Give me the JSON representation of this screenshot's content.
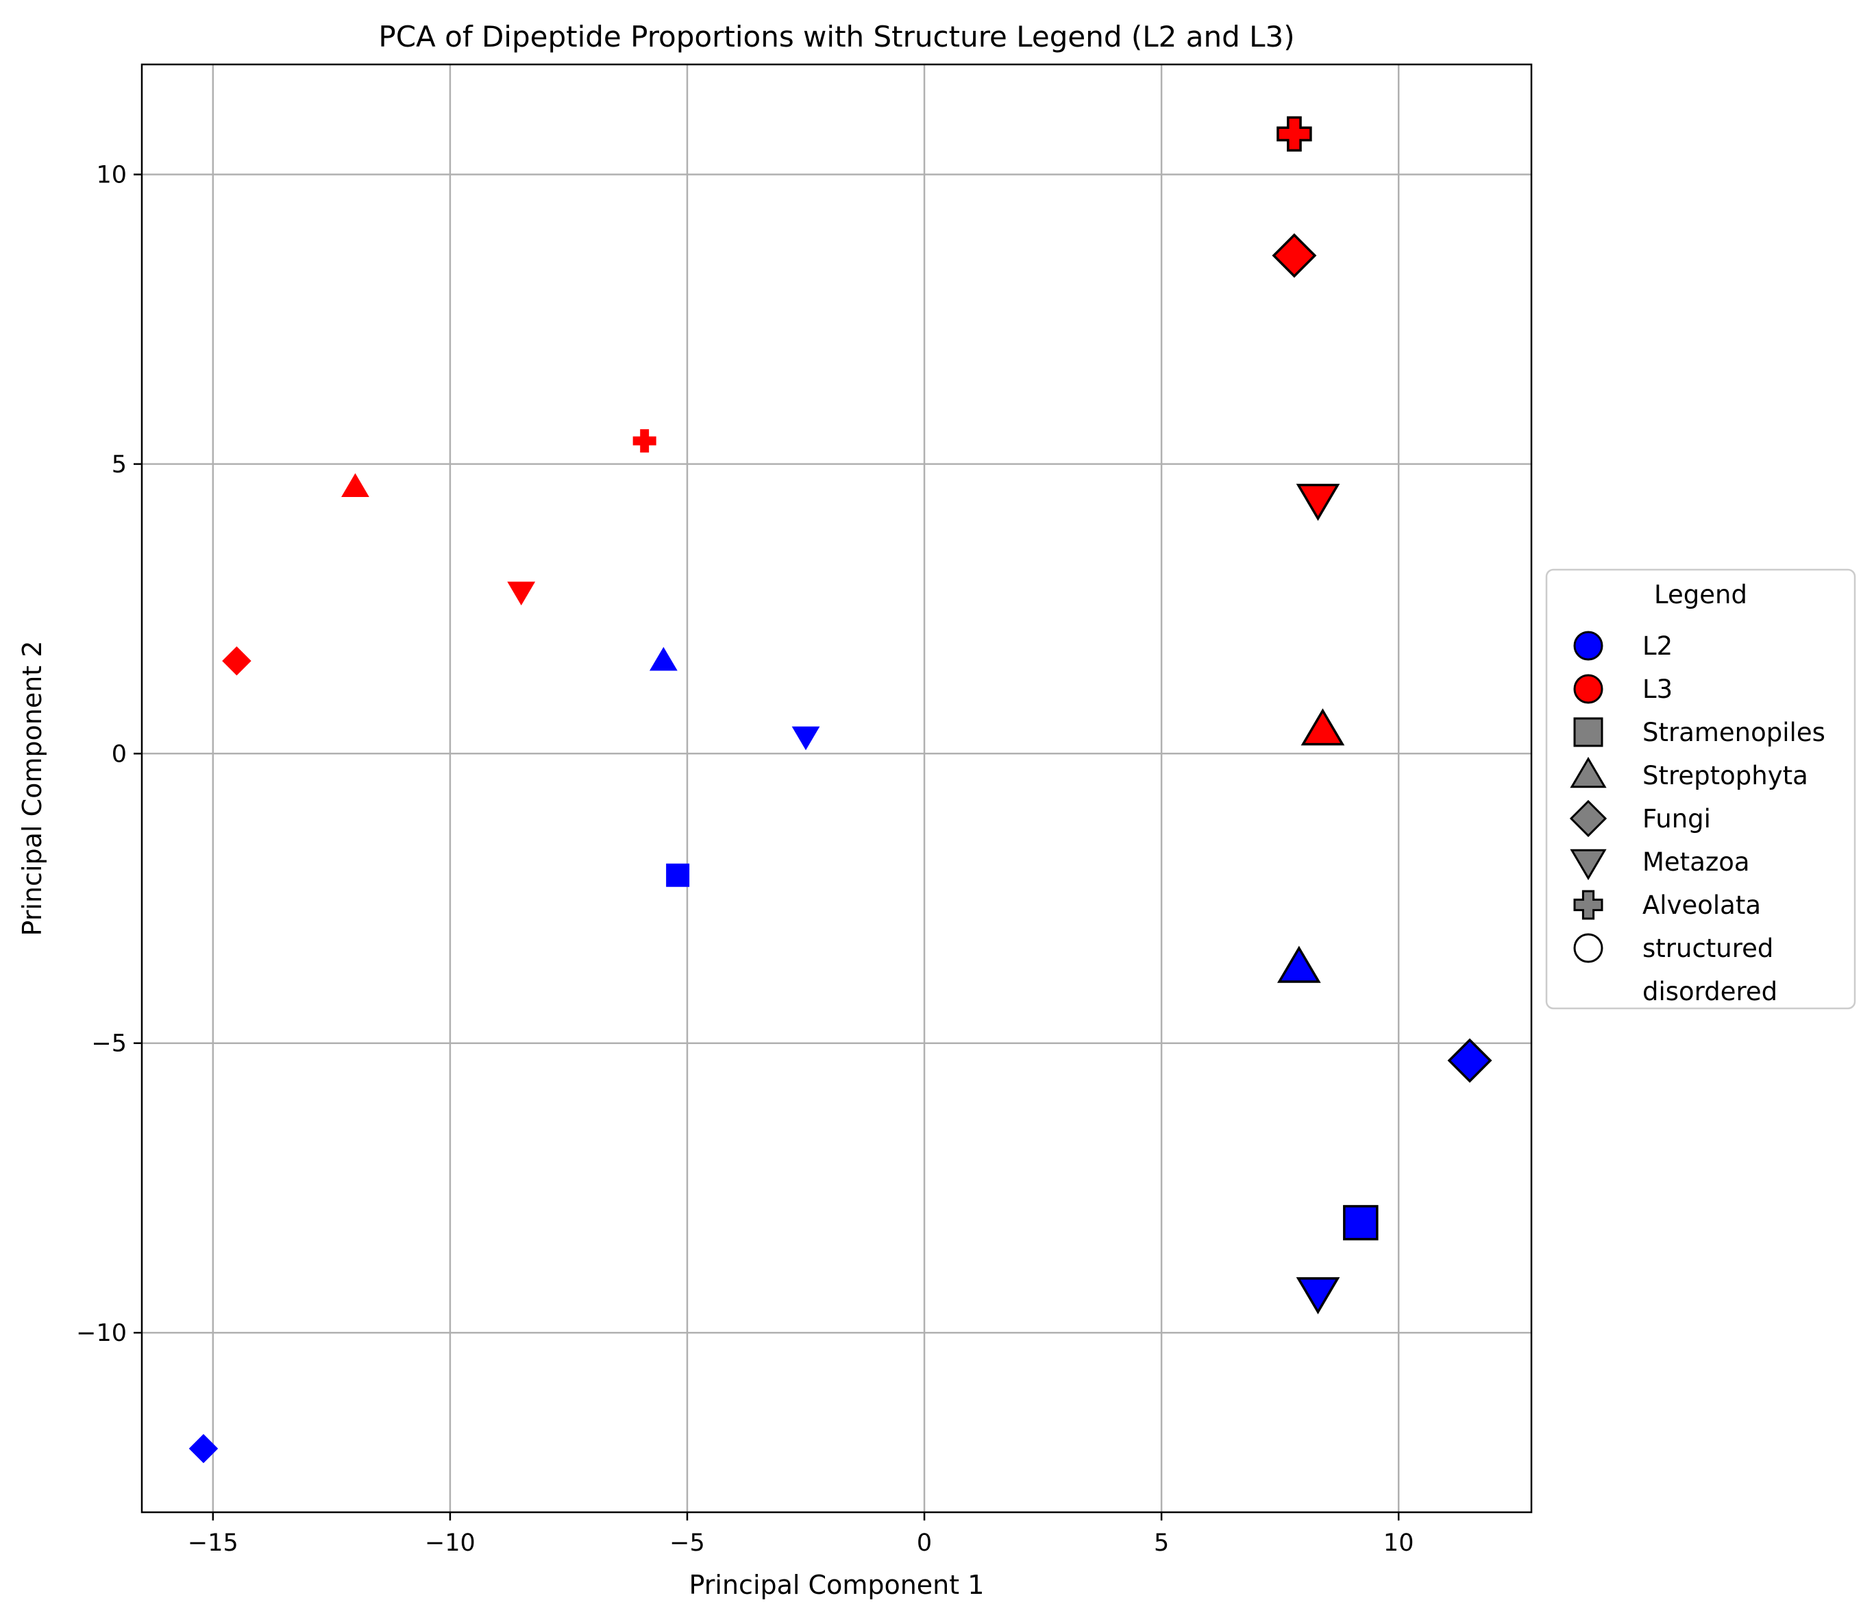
{
  "chart_data": {
    "type": "scatter",
    "title": "PCA of Dipeptide Proportions with Structure Legend (L2 and L3)",
    "xlabel": "Principal Component 1",
    "ylabel": "Principal Component 2",
    "xlim": [
      -16.5,
      12.8
    ],
    "ylim": [
      -13.1,
      11.9
    ],
    "xticks": [
      -15,
      -10,
      -5,
      0,
      5,
      10
    ],
    "yticks": [
      -10,
      -5,
      0,
      5,
      10
    ],
    "xtick_labels": [
      "−15",
      "−10",
      "−5",
      "0",
      "5",
      "10"
    ],
    "ytick_labels": [
      "−10",
      "−5",
      "0",
      "5",
      "10"
    ],
    "grid": true,
    "legend": {
      "title": "Legend",
      "placement": "center-right-outside",
      "entries": [
        {
          "label": "L2",
          "marker": "circle",
          "fill": "#0000ff",
          "edge": "#000000"
        },
        {
          "label": "L3",
          "marker": "circle",
          "fill": "#ff0000",
          "edge": "#000000"
        },
        {
          "label": "Stramenopiles",
          "marker": "square",
          "fill": "#808080",
          "edge": "#000000"
        },
        {
          "label": "Streptophyta",
          "marker": "triangle-up",
          "fill": "#808080",
          "edge": "#000000"
        },
        {
          "label": "Fungi",
          "marker": "diamond",
          "fill": "#808080",
          "edge": "#000000"
        },
        {
          "label": "Metazoa",
          "marker": "triangle-down",
          "fill": "#808080",
          "edge": "#000000"
        },
        {
          "label": "Alveolata",
          "marker": "plus",
          "fill": "#808080",
          "edge": "#000000"
        },
        {
          "label": "structured",
          "marker": "circle",
          "fill": "#ffffff",
          "edge": "#000000"
        },
        {
          "label": "disordered",
          "marker": "none",
          "fill": "#ffffff",
          "edge": "#ffffff"
        }
      ]
    },
    "colors": {
      "L2": "#0000ff",
      "L3": "#ff0000"
    },
    "points": [
      {
        "x": -15.2,
        "y": -12.0,
        "group": "L2",
        "taxon": "Fungi",
        "structure": "disordered"
      },
      {
        "x": -5.2,
        "y": -2.1,
        "group": "L2",
        "taxon": "Stramenopiles",
        "structure": "disordered"
      },
      {
        "x": -5.5,
        "y": 1.6,
        "group": "L2",
        "taxon": "Streptophyta",
        "structure": "disordered"
      },
      {
        "x": -2.5,
        "y": 0.3,
        "group": "L2",
        "taxon": "Metazoa",
        "structure": "disordered"
      },
      {
        "x": -14.5,
        "y": 1.6,
        "group": "L3",
        "taxon": "Fungi",
        "structure": "disordered"
      },
      {
        "x": -12.0,
        "y": 4.6,
        "group": "L3",
        "taxon": "Streptophyta",
        "structure": "disordered"
      },
      {
        "x": -8.5,
        "y": 2.8,
        "group": "L3",
        "taxon": "Metazoa",
        "structure": "disordered"
      },
      {
        "x": -5.9,
        "y": 5.4,
        "group": "L3",
        "taxon": "Alveolata",
        "structure": "disordered"
      },
      {
        "x": 7.9,
        "y": -3.7,
        "group": "L2",
        "taxon": "Streptophyta",
        "structure": "structured"
      },
      {
        "x": 11.5,
        "y": -5.3,
        "group": "L2",
        "taxon": "Fungi",
        "structure": "structured"
      },
      {
        "x": 9.2,
        "y": -8.1,
        "group": "L2",
        "taxon": "Stramenopiles",
        "structure": "structured"
      },
      {
        "x": 8.3,
        "y": -9.3,
        "group": "L2",
        "taxon": "Metazoa",
        "structure": "structured"
      },
      {
        "x": 7.8,
        "y": 10.7,
        "group": "L3",
        "taxon": "Alveolata",
        "structure": "structured"
      },
      {
        "x": 7.8,
        "y": 8.6,
        "group": "L3",
        "taxon": "Fungi",
        "structure": "structured"
      },
      {
        "x": 8.3,
        "y": 4.4,
        "group": "L3",
        "taxon": "Metazoa",
        "structure": "structured"
      },
      {
        "x": 8.4,
        "y": 0.4,
        "group": "L3",
        "taxon": "Streptophyta",
        "structure": "structured"
      }
    ]
  }
}
